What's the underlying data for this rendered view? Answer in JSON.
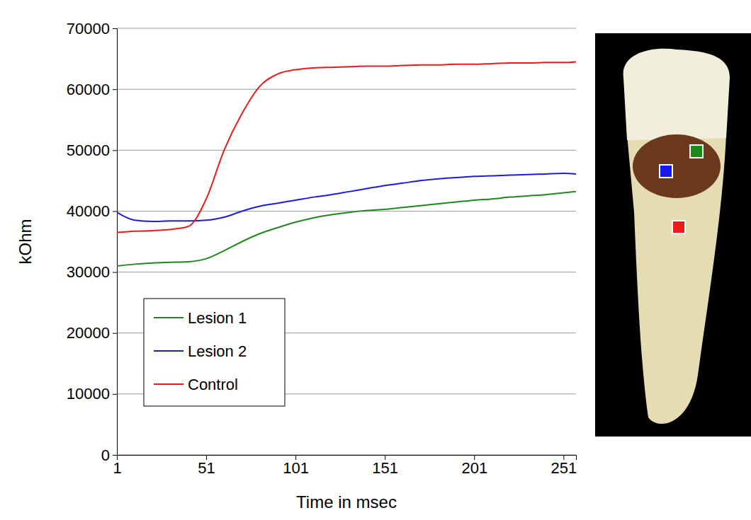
{
  "chart_data": {
    "type": "line",
    "x_label": "Time in msec",
    "y_label": "kOhm",
    "x": [
      1,
      11,
      21,
      31,
      41,
      51,
      61,
      71,
      81,
      91,
      101,
      111,
      121,
      131,
      141,
      151,
      161,
      171,
      181,
      191,
      201,
      211,
      221,
      231,
      241,
      251,
      258
    ],
    "series": [
      {
        "name": "Lesion 1",
        "color": "#1a8a1a",
        "values": [
          31000,
          31300,
          31500,
          31600,
          31700,
          32200,
          33500,
          35000,
          36300,
          37300,
          38200,
          38900,
          39400,
          39800,
          40100,
          40300,
          40600,
          40900,
          41200,
          41500,
          41800,
          42000,
          42300,
          42500,
          42700,
          43000,
          43200
        ]
      },
      {
        "name": "Lesion 2",
        "color": "#1a1aee",
        "values": [
          39800,
          38500,
          38300,
          38400,
          38400,
          38500,
          39000,
          40000,
          40800,
          41300,
          41800,
          42300,
          42700,
          43200,
          43700,
          44200,
          44600,
          45000,
          45300,
          45500,
          45700,
          45800,
          45900,
          46000,
          46100,
          46200,
          46100
        ]
      },
      {
        "name": "Control",
        "color": "#ee1a1a",
        "values": [
          36500,
          36700,
          36800,
          37000,
          37500,
          42000,
          50000,
          56000,
          60500,
          62500,
          63200,
          63500,
          63600,
          63700,
          63800,
          63800,
          63900,
          64000,
          64000,
          64100,
          64100,
          64200,
          64300,
          64300,
          64400,
          64400,
          64500
        ]
      }
    ],
    "xlim": [
      1,
      258
    ],
    "xticks": [
      1,
      51,
      101,
      151,
      201,
      251
    ],
    "ylim": [
      0,
      70000
    ],
    "yticks": [
      0,
      10000,
      20000,
      30000,
      40000,
      50000,
      60000,
      70000
    ],
    "grid": true,
    "legend": "lower left"
  }
}
